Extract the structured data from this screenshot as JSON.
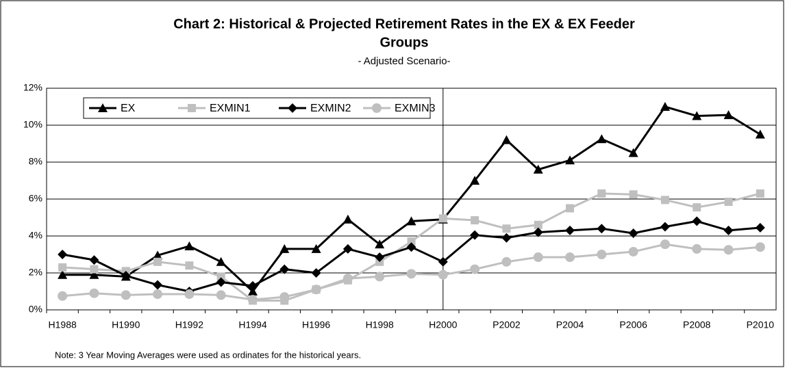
{
  "chart_data": {
    "type": "line",
    "title": "Chart 2: Historical & Projected Retirement Rates in the EX & EX Feeder",
    "title_line2": "Groups",
    "subtitle": "- Adjusted Scenario-",
    "note": "Note:  3 Year Moving Averages were used as ordinates for the historical years.",
    "categories": [
      "H1988",
      null,
      "H1990",
      null,
      "H1992",
      null,
      "H1994",
      null,
      "H1996",
      null,
      "H1998",
      null,
      "H2000",
      null,
      "P2002",
      null,
      "P2004",
      null,
      "P2006",
      null,
      "P2008",
      null,
      "P2010"
    ],
    "ylim": [
      0,
      12
    ],
    "yticks": [
      {
        "value": 0,
        "label": "0%"
      },
      {
        "value": 2,
        "label": "2%"
      },
      {
        "value": 4,
        "label": "4%"
      },
      {
        "value": 6,
        "label": "6%"
      },
      {
        "value": 8,
        "label": "8%"
      },
      {
        "value": 10,
        "label": "10%"
      },
      {
        "value": 12,
        "label": "12%"
      }
    ],
    "grid": true,
    "legend": "top-left",
    "series": [
      {
        "name": "EX",
        "color": "#000000",
        "marker": "triangle",
        "values": [
          1.9,
          1.9,
          1.8,
          2.95,
          3.45,
          2.6,
          1.0,
          3.3,
          3.3,
          4.9,
          3.55,
          4.8,
          4.9,
          7.0,
          9.2,
          7.6,
          8.1,
          9.25,
          8.5,
          11.0,
          10.5,
          10.55,
          9.5
        ]
      },
      {
        "name": "EXMIN1",
        "color": "#bfbfbf",
        "marker": "square",
        "values": [
          2.3,
          2.2,
          2.1,
          2.6,
          2.4,
          1.8,
          0.5,
          0.5,
          1.1,
          1.6,
          2.6,
          3.7,
          4.95,
          4.85,
          4.4,
          4.6,
          5.5,
          6.3,
          6.25,
          5.95,
          5.55,
          5.85,
          6.3
        ]
      },
      {
        "name": "EXMIN2",
        "color": "#000000",
        "marker": "diamond",
        "values": [
          3.0,
          2.7,
          1.85,
          1.35,
          1.0,
          1.5,
          1.3,
          2.2,
          2.0,
          3.3,
          2.85,
          3.4,
          2.6,
          4.05,
          3.9,
          4.2,
          4.3,
          4.4,
          4.15,
          4.5,
          4.8,
          4.3,
          4.45
        ]
      },
      {
        "name": "EXMIN3",
        "color": "#bfbfbf",
        "marker": "circle",
        "values": [
          0.75,
          0.9,
          0.8,
          0.85,
          0.85,
          0.8,
          0.55,
          0.7,
          1.1,
          1.7,
          1.8,
          1.95,
          1.9,
          2.2,
          2.6,
          2.85,
          2.85,
          3.0,
          3.15,
          3.55,
          3.3,
          3.25,
          3.4
        ]
      }
    ]
  }
}
